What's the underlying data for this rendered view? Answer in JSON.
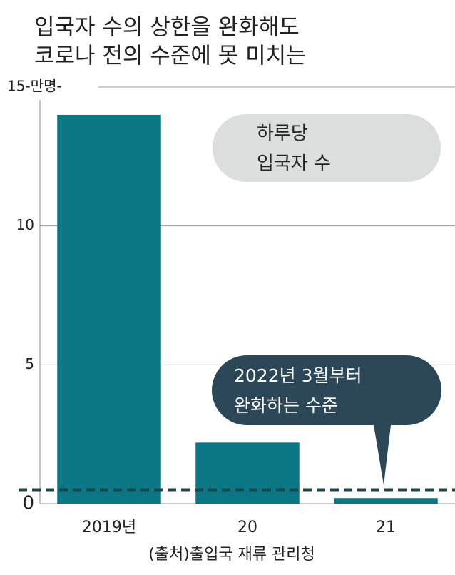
{
  "chart_data": {
    "type": "bar",
    "title": [
      "입국자 수의 상한을 완화해도",
      "코로나 전의 수준에 못 미치는"
    ],
    "categories": [
      "2019년",
      "20",
      "21"
    ],
    "values": [
      14,
      2.2,
      0.2
    ],
    "color": "#0b7785",
    "ylim": [
      0,
      15
    ],
    "yticks": [
      0,
      5,
      10,
      {
        "value": 15,
        "label": "15-만명-"
      }
    ],
    "grid": true,
    "threshold": 0.5,
    "threshold_color": "#1d4545",
    "legend": [
      "하루당",
      "입국자 수"
    ],
    "annotation": [
      "2022년 3월부터",
      "완화하는 수준"
    ],
    "source": "(출처)출입국 재류 관리청"
  }
}
